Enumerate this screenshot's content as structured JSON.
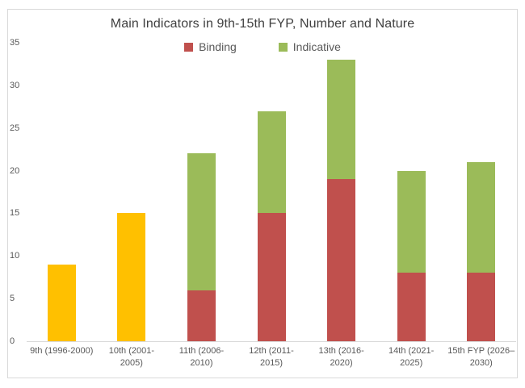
{
  "page": {
    "background": "#ffffff"
  },
  "frame": {
    "border_color": "#d9d9d9",
    "background": "#ffffff"
  },
  "chart_data": {
    "type": "bar",
    "stacked": true,
    "title": "Main Indicators in 9th-15th FYP, Number and Nature",
    "title_color": "#404040",
    "axis_text_color": "#595959",
    "axis_line_color": "#d9d9d9",
    "grid": false,
    "legend_position": "top-center",
    "ylim": [
      0,
      35
    ],
    "yticks": [
      0,
      5,
      10,
      15,
      20,
      25,
      30,
      35
    ],
    "legend": [
      {
        "label": "Binding",
        "color": "#C0504D"
      },
      {
        "label": "Indicative",
        "color": "#9BBB59"
      }
    ],
    "categories": [
      {
        "label": "9th (1996-2000)",
        "lines": [
          "9th (1996-2000)"
        ]
      },
      {
        "label": "10th (2001-2005)",
        "lines": [
          "10th (2001-",
          "2005)"
        ]
      },
      {
        "label": "11th (2006-2010)",
        "lines": [
          "11th (2006-",
          "2010)"
        ]
      },
      {
        "label": "12th (2011-2015)",
        "lines": [
          "12th (2011-",
          "2015)"
        ]
      },
      {
        "label": "13th (2016-2020)",
        "lines": [
          "13th (2016-",
          "2020)"
        ]
      },
      {
        "label": "14th (2021-2025)",
        "lines": [
          "14th (2021-",
          "2025)"
        ]
      },
      {
        "label": "15th FYP (2026–2030)",
        "lines": [
          "15th FYP (2026–",
          "2030)"
        ]
      }
    ],
    "series": [
      {
        "name": null,
        "color": "#FFC000",
        "values": [
          9,
          15,
          null,
          null,
          null,
          null,
          null
        ]
      },
      {
        "name": "Binding",
        "color": "#C0504D",
        "values": [
          null,
          null,
          6,
          15,
          19,
          8,
          8
        ]
      },
      {
        "name": "Indicative",
        "color": "#9BBB59",
        "values": [
          null,
          null,
          16,
          12,
          14,
          12,
          13
        ]
      }
    ],
    "totals": [
      9,
      15,
      22,
      27,
      33,
      20,
      21
    ]
  }
}
